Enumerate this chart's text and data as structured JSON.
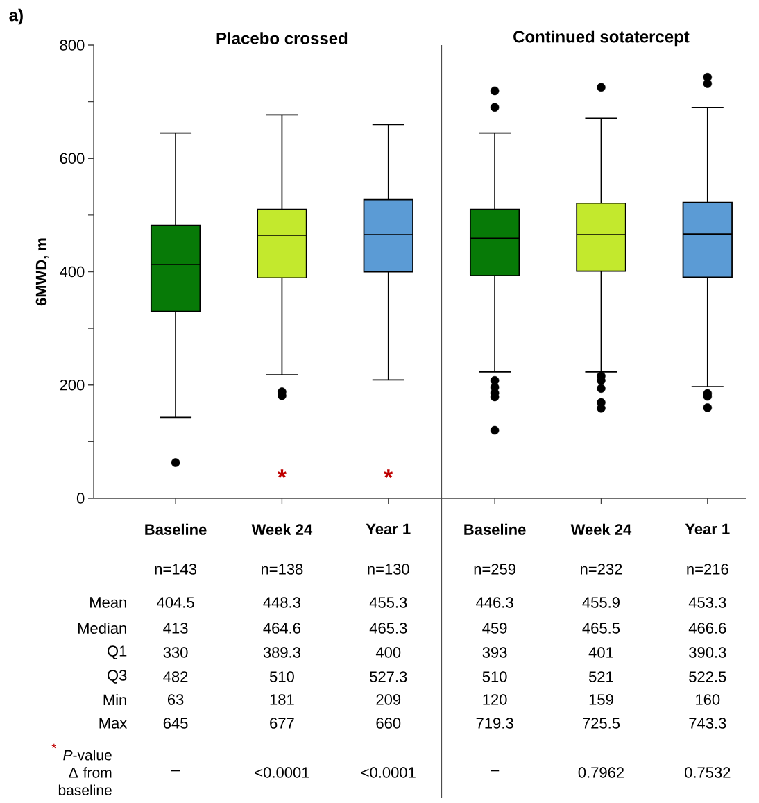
{
  "chart_data": {
    "type": "box",
    "title": "a)",
    "ylabel": "6MWD, m",
    "categories": [
      "Baseline",
      "Week 24",
      "Year 1",
      "Baseline",
      "Week 24",
      "Year 1"
    ],
    "colors": [
      "#077a07",
      "#c3e92d",
      "#5b9bd5",
      "#077a07",
      "#c3e92d",
      "#5b9bd5"
    ],
    "boxes": [
      {
        "low": 143,
        "q1": 330,
        "median": 413,
        "q3": 482,
        "high": 645,
        "outliers": [
          63
        ]
      },
      {
        "low": 218,
        "q1": 389.3,
        "median": 464.6,
        "q3": 510,
        "high": 677,
        "outliers": [
          181,
          188
        ]
      },
      {
        "low": 209,
        "q1": 400,
        "median": 465.3,
        "q3": 527.3,
        "high": 660
      },
      {
        "low": 223,
        "q1": 393,
        "median": 459,
        "q3": 510,
        "high": 645,
        "outliers": [
          120,
          179,
          186,
          196,
          208,
          690,
          719.3
        ]
      },
      {
        "low": 223,
        "q1": 401,
        "median": 465.5,
        "q3": 521,
        "high": 671,
        "outliers": [
          159,
          169,
          194,
          208,
          216,
          725.5
        ]
      },
      {
        "low": 197,
        "q1": 390.3,
        "median": 466.6,
        "q3": 522.5,
        "high": 690,
        "outliers": [
          160,
          180,
          185,
          732,
          743.3
        ]
      }
    ],
    "ylim": [
      0,
      800
    ],
    "yticks": [
      0,
      {
        "value": 100,
        "label": null
      },
      200,
      {
        "value": 300,
        "label": null
      },
      400,
      {
        "value": 500,
        "label": null
      },
      600,
      {
        "value": 700,
        "label": null
      },
      800
    ],
    "annotations": [
      "Placebo crossed",
      "Continued sotatercept",
      "*",
      "*",
      "n=143",
      "n=138",
      "n=130",
      "n=259",
      "n=232",
      "n=216",
      "Mean",
      "404.5",
      "448.3",
      "455.3",
      "446.3",
      "455.9",
      "453.3",
      "Median",
      "413",
      "464.6",
      "465.3",
      "459",
      "465.5",
      "466.6",
      "Q1",
      "330",
      "389.3",
      "400",
      "393",
      "401",
      "390.3",
      "Q3",
      "482",
      "510",
      "527.3",
      "510",
      "521",
      "522.5",
      "Min",
      "63",
      "181",
      "209",
      "120",
      "159",
      "160",
      "Max",
      "645",
      "677",
      "660",
      "719.3",
      "725.5",
      "743.3",
      "*",
      "*P*-value Δ from baseline",
      "–",
      "<0.0001",
      "<0.0001",
      "–",
      "0.7962",
      "0.7532"
    ]
  }
}
